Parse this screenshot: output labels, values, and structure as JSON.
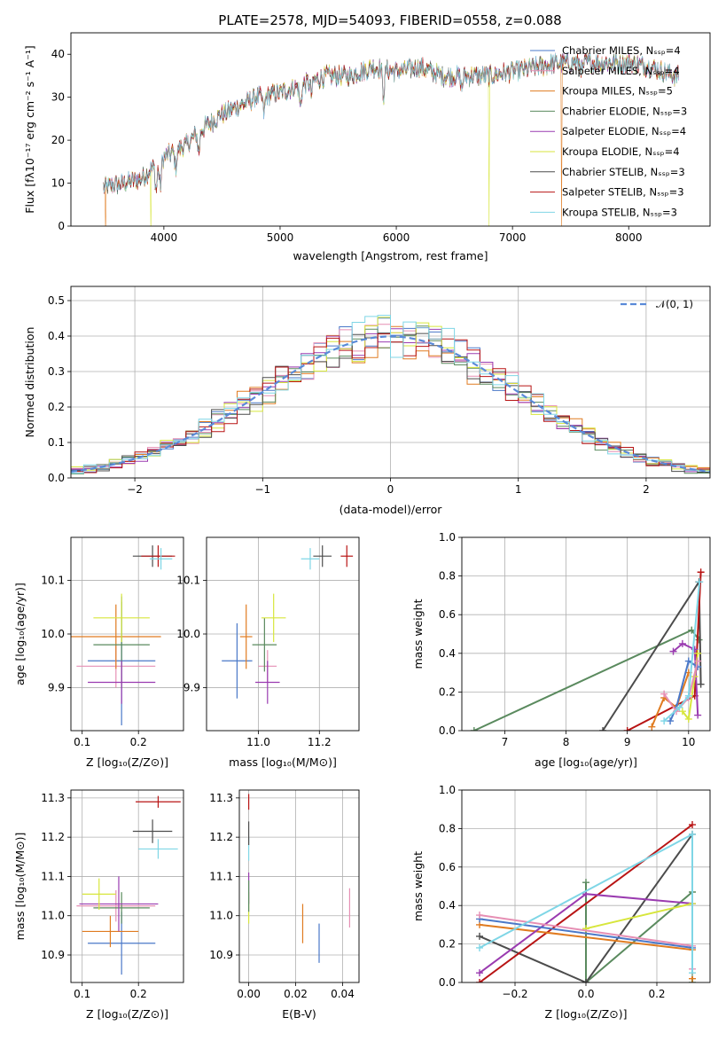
{
  "colors": {
    "chabrier_miles": "#4a78c8",
    "salpeter_miles": "#e68fb4",
    "kroupa_miles": "#e07b20",
    "chabrier_elodie": "#5a8a5e",
    "salpeter_elodie": "#9a3bb0",
    "kroupa_elodie": "#d7e63c",
    "chabrier_stelib": "#4c4c4c",
    "salpeter_stelib": "#b81414",
    "kroupa_stelib": "#7fd6e6",
    "normal_curve": "#5a8ad8",
    "grid": "#b0b0b0"
  },
  "chart_data": [
    {
      "id": "spectrum",
      "type": "line",
      "title": "PLATE=2578, MJD=54093, FIBERID=0558, z=0.088",
      "xlabel": "wavelength [Angstrom, rest frame]",
      "ylabel": "Flux [fλ10⁻¹⁷ erg cm⁻² s⁻¹ A⁻¹]",
      "xlim": [
        3200,
        8700
      ],
      "ylim": [
        0,
        45
      ],
      "xticks": [
        4000,
        5000,
        6000,
        7000,
        8000
      ],
      "yticks": [
        0,
        10,
        20,
        30,
        40
      ],
      "grid": false,
      "legend": "right",
      "series": [
        {
          "name": "Chabrier MILES, Nₛₛₚ=4",
          "key": "chabrier_miles"
        },
        {
          "name": "Salpeter MILES, Nₛₛₚ=4",
          "key": "salpeter_miles"
        },
        {
          "name": "Kroupa MILES, Nₛₛₚ=5",
          "key": "kroupa_miles"
        },
        {
          "name": "Chabrier ELODIE, Nₛₛₚ=3",
          "key": "chabrier_elodie"
        },
        {
          "name": "Salpeter ELODIE, Nₛₛₚ=4",
          "key": "salpeter_elodie"
        },
        {
          "name": "Kroupa ELODIE, Nₛₛₚ=4",
          "key": "kroupa_elodie"
        },
        {
          "name": "Chabrier STELIB, Nₛₛₚ=3",
          "key": "chabrier_stelib"
        },
        {
          "name": "Salpeter STELIB, Nₛₛₚ=3",
          "key": "salpeter_stelib"
        },
        {
          "name": "Kroupa STELIB, Nₛₛₚ=3",
          "key": "kroupa_stelib"
        }
      ],
      "continuum": {
        "x": [
          3500,
          3800,
          4000,
          4200,
          4300,
          4500,
          4800,
          5000,
          5200,
          5400,
          5600,
          5800,
          6000,
          6200,
          6400,
          6600,
          6800,
          7000,
          7200,
          7400,
          7600,
          7800,
          8000,
          8200,
          8400
        ],
        "y": [
          9,
          11,
          16,
          19,
          22,
          26,
          30,
          31,
          33,
          35,
          35,
          37,
          36,
          37,
          35,
          35,
          35,
          36,
          37,
          38,
          38,
          38,
          38,
          37,
          35
        ]
      },
      "dropouts": [
        {
          "series": "kroupa_miles",
          "x": 3500
        },
        {
          "series": "kroupa_elodie",
          "x": 3890
        },
        {
          "series": "kroupa_elodie",
          "x": 6800
        },
        {
          "series": "kroupa_miles",
          "x": 7420
        }
      ]
    },
    {
      "id": "residuals",
      "type": "histogram",
      "xlabel": "(data-model)/error",
      "ylabel": "Normed distribution",
      "xlim": [
        -2.5,
        2.5
      ],
      "ylim": [
        0,
        0.54
      ],
      "xticks": [
        -2,
        -1,
        0,
        1,
        2
      ],
      "yticks": [
        0.0,
        0.1,
        0.2,
        0.3,
        0.4,
        0.5
      ],
      "grid": true,
      "legend": "top-right",
      "bin_width": 0.1,
      "curve_label": "𝒩(0, 1)",
      "curve": "standard normal pdf"
    },
    {
      "id": "age_vs_Z",
      "type": "errorbar",
      "xlabel": "Z [log₁₀(Z/Z⊙)]",
      "ylabel": "age  [log₁₀(age/yr)]",
      "xlim": [
        0.08,
        0.28
      ],
      "ylim": [
        9.82,
        10.18
      ],
      "xticks": [
        0.1,
        0.2
      ],
      "yticks": [
        9.9,
        10.0,
        10.1
      ],
      "grid": true,
      "points": [
        {
          "key": "chabrier_miles",
          "x": 0.17,
          "y": 9.95,
          "xerr": 0.06,
          "yerr": 0.12
        },
        {
          "key": "salpeter_miles",
          "x": 0.16,
          "y": 9.94,
          "xerr": 0.07,
          "yerr": 0.04
        },
        {
          "key": "kroupa_miles",
          "x": 0.16,
          "y": 9.995,
          "xerr": 0.08,
          "yerr": 0.06
        },
        {
          "key": "chabrier_elodie",
          "x": 0.17,
          "y": 9.98,
          "xerr": 0.05,
          "yerr": 0.08
        },
        {
          "key": "salpeter_elodie",
          "x": 0.17,
          "y": 9.91,
          "xerr": 0.06,
          "yerr": 0.04
        },
        {
          "key": "kroupa_elodie",
          "x": 0.17,
          "y": 10.03,
          "xerr": 0.05,
          "yerr": 0.045
        },
        {
          "key": "chabrier_stelib",
          "x": 0.225,
          "y": 10.145,
          "xerr": 0.035,
          "yerr": 0.02
        },
        {
          "key": "salpeter_stelib",
          "x": 0.235,
          "y": 10.145,
          "xerr": 0.03,
          "yerr": 0.02
        },
        {
          "key": "kroupa_stelib",
          "x": 0.24,
          "y": 10.14,
          "xerr": 0.02,
          "yerr": 0.02
        }
      ]
    },
    {
      "id": "age_vs_mass",
      "type": "errorbar",
      "xlabel": "mass [log₁₀(M/M⊙)]",
      "ylabel": "",
      "xlim": [
        10.83,
        11.33
      ],
      "ylim": [
        9.82,
        10.18
      ],
      "xticks": [
        11.0,
        11.2
      ],
      "yticks": [
        9.9,
        10.0,
        10.1
      ],
      "grid": true,
      "points": [
        {
          "key": "chabrier_miles",
          "x": 10.93,
          "y": 9.95,
          "xerr": 0.05,
          "yerr": 0.07
        },
        {
          "key": "salpeter_miles",
          "x": 11.03,
          "y": 9.94,
          "xerr": 0.03,
          "yerr": 0.03
        },
        {
          "key": "kroupa_miles",
          "x": 10.96,
          "y": 9.995,
          "xerr": 0.02,
          "yerr": 0.06
        },
        {
          "key": "chabrier_elodie",
          "x": 11.02,
          "y": 9.98,
          "xerr": 0.04,
          "yerr": 0.05
        },
        {
          "key": "salpeter_elodie",
          "x": 11.03,
          "y": 9.91,
          "xerr": 0.04,
          "yerr": 0.04
        },
        {
          "key": "kroupa_elodie",
          "x": 11.05,
          "y": 10.03,
          "xerr": 0.04,
          "yerr": 0.045
        },
        {
          "key": "chabrier_stelib",
          "x": 11.21,
          "y": 10.145,
          "xerr": 0.03,
          "yerr": 0.02
        },
        {
          "key": "salpeter_stelib",
          "x": 11.29,
          "y": 10.145,
          "xerr": 0.02,
          "yerr": 0.02
        },
        {
          "key": "kroupa_stelib",
          "x": 11.17,
          "y": 10.14,
          "xerr": 0.03,
          "yerr": 0.02
        }
      ]
    },
    {
      "id": "weight_vs_age",
      "type": "line",
      "xlabel": "age  [log₁₀(age/yr)]",
      "ylabel": "mass weight",
      "xlim": [
        6.3,
        10.35
      ],
      "ylim": [
        0,
        1.0
      ],
      "xticks": [
        7,
        8,
        9,
        10
      ],
      "yticks": [
        0.0,
        0.2,
        0.4,
        0.6,
        0.8,
        1.0
      ],
      "grid": true,
      "series": [
        {
          "key": "chabrier_elodie",
          "x": [
            6.5,
            10.05,
            10.17
          ],
          "y": [
            0.0,
            0.52,
            0.47
          ]
        },
        {
          "key": "chabrier_stelib",
          "x": [
            8.6,
            10.17,
            10.2
          ],
          "y": [
            0.0,
            0.77,
            0.24
          ]
        },
        {
          "key": "salpeter_stelib",
          "x": [
            9.0,
            10.1,
            10.2
          ],
          "y": [
            0.0,
            0.18,
            0.82
          ]
        },
        {
          "key": "kroupa_miles",
          "x": [
            9.4,
            9.6,
            9.8,
            10.0
          ],
          "y": [
            0.02,
            0.17,
            0.12,
            0.3
          ]
        },
        {
          "key": "salpeter_elodie",
          "x": [
            9.75,
            9.9,
            10.1,
            10.15
          ],
          "y": [
            0.41,
            0.45,
            0.42,
            0.08
          ]
        },
        {
          "key": "kroupa_elodie",
          "x": [
            9.9,
            10.0,
            10.1,
            10.15
          ],
          "y": [
            0.1,
            0.06,
            0.28,
            0.4
          ]
        },
        {
          "key": "chabrier_miles",
          "x": [
            9.7,
            9.8,
            10.0,
            10.15
          ],
          "y": [
            0.05,
            0.12,
            0.36,
            0.33
          ]
        },
        {
          "key": "salpeter_miles",
          "x": [
            9.6,
            9.8,
            10.0,
            10.15
          ],
          "y": [
            0.19,
            0.1,
            0.17,
            0.36
          ]
        },
        {
          "key": "kroupa_stelib",
          "x": [
            9.6,
            9.85,
            10.0,
            10.18
          ],
          "y": [
            0.05,
            0.12,
            0.18,
            0.77
          ]
        }
      ]
    },
    {
      "id": "mass_vs_Z",
      "type": "errorbar",
      "xlabel": "Z [log₁₀(Z/Z⊙)]",
      "ylabel": "mass [log₁₀(M/M⊙)]",
      "xlim": [
        0.08,
        0.28
      ],
      "ylim": [
        10.83,
        11.32
      ],
      "xticks": [
        0.1,
        0.2
      ],
      "yticks": [
        10.9,
        11.0,
        11.1,
        11.2,
        11.3
      ],
      "grid": true,
      "points": [
        {
          "key": "chabrier_miles",
          "x": 0.17,
          "y": 10.93,
          "xerr": 0.06,
          "yerr": 0.08
        },
        {
          "key": "salpeter_miles",
          "x": 0.16,
          "y": 11.025,
          "xerr": 0.07,
          "yerr": 0.04
        },
        {
          "key": "kroupa_miles",
          "x": 0.15,
          "y": 10.96,
          "xerr": 0.05,
          "yerr": 0.04
        },
        {
          "key": "chabrier_elodie",
          "x": 0.17,
          "y": 11.02,
          "xerr": 0.05,
          "yerr": 0.04
        },
        {
          "key": "salpeter_elodie",
          "x": 0.165,
          "y": 11.03,
          "xerr": 0.07,
          "yerr": 0.07
        },
        {
          "key": "kroupa_elodie",
          "x": 0.13,
          "y": 11.055,
          "xerr": 0.03,
          "yerr": 0.04
        },
        {
          "key": "chabrier_stelib",
          "x": 0.225,
          "y": 11.215,
          "xerr": 0.035,
          "yerr": 0.03
        },
        {
          "key": "salpeter_stelib",
          "x": 0.235,
          "y": 11.29,
          "xerr": 0.04,
          "yerr": 0.015
        },
        {
          "key": "kroupa_stelib",
          "x": 0.235,
          "y": 11.17,
          "xerr": 0.035,
          "yerr": 0.025
        }
      ]
    },
    {
      "id": "mass_vs_ebv",
      "type": "errorbar",
      "xlabel": "E(B-V)",
      "ylabel": "",
      "xlim": [
        -0.004,
        0.047
      ],
      "ylim": [
        10.83,
        11.32
      ],
      "xticks": [
        0.0,
        0.02,
        0.04
      ],
      "yticks": [
        10.9,
        11.0,
        11.1,
        11.2,
        11.3
      ],
      "grid": true,
      "points": [
        {
          "key": "chabrier_miles",
          "x": 0.03,
          "y": 10.93,
          "xerr": 0.0,
          "yerr": 0.05
        },
        {
          "key": "kroupa_miles",
          "x": 0.023,
          "y": 10.98,
          "xerr": 0.0,
          "yerr": 0.05
        },
        {
          "key": "salpeter_miles",
          "x": 0.043,
          "y": 11.02,
          "xerr": 0.0,
          "yerr": 0.05
        },
        {
          "key": "kroupa_elodie",
          "x": 0.0,
          "y": 11.02,
          "xerr": 0.0,
          "yerr": 0.04
        },
        {
          "key": "salpeter_elodie",
          "x": 0.0,
          "y": 11.07,
          "xerr": 0.0,
          "yerr": 0.04
        },
        {
          "key": "chabrier_elodie",
          "x": 0.0,
          "y": 11.05,
          "xerr": 0.0,
          "yerr": 0.04
        },
        {
          "key": "kroupa_stelib",
          "x": 0.0,
          "y": 11.17,
          "xerr": 0.0,
          "yerr": 0.03
        },
        {
          "key": "chabrier_stelib",
          "x": 0.0,
          "y": 11.21,
          "xerr": 0.0,
          "yerr": 0.03
        },
        {
          "key": "salpeter_stelib",
          "x": 0.0,
          "y": 11.29,
          "xerr": 0.0,
          "yerr": 0.02
        }
      ]
    },
    {
      "id": "weight_vs_Z",
      "type": "line",
      "xlabel": "Z [log₁₀(Z/Z⊙)]",
      "ylabel": "mass weight",
      "xlim": [
        -0.35,
        0.35
      ],
      "ylim": [
        0,
        1.0
      ],
      "xticks": [
        -0.2,
        0.0,
        0.2
      ],
      "yticks": [
        0.0,
        0.2,
        0.4,
        0.6,
        0.8,
        1.0
      ],
      "grid": true,
      "series": [
        {
          "key": "chabrier_elodie",
          "x": [
            0.0,
            0.0,
            0.3,
            0.3
          ],
          "y": [
            0.52,
            0.0,
            0.47,
            0.0
          ]
        },
        {
          "key": "chabrier_stelib",
          "x": [
            -0.3,
            0.0,
            0.3
          ],
          "y": [
            0.24,
            0.0,
            0.77
          ]
        },
        {
          "key": "salpeter_stelib",
          "x": [
            -0.3,
            0.3
          ],
          "y": [
            0.0,
            0.82
          ]
        },
        {
          "key": "kroupa_miles",
          "x": [
            -0.3,
            0.3,
            0.3
          ],
          "y": [
            0.3,
            0.17,
            0.02
          ]
        },
        {
          "key": "salpeter_elodie",
          "x": [
            -0.3,
            0.0,
            0.3
          ],
          "y": [
            0.05,
            0.46,
            0.41
          ]
        },
        {
          "key": "kroupa_elodie",
          "x": [
            0.0,
            0.3
          ],
          "y": [
            0.28,
            0.41
          ]
        },
        {
          "key": "chabrier_miles",
          "x": [
            -0.3,
            0.3
          ],
          "y": [
            0.33,
            0.18
          ]
        },
        {
          "key": "salpeter_miles",
          "x": [
            -0.3,
            0.3,
            0.3
          ],
          "y": [
            0.35,
            0.19,
            0.07
          ]
        },
        {
          "key": "kroupa_stelib",
          "x": [
            -0.3,
            0.3,
            0.3
          ],
          "y": [
            0.18,
            0.77,
            0.05
          ]
        }
      ]
    }
  ]
}
